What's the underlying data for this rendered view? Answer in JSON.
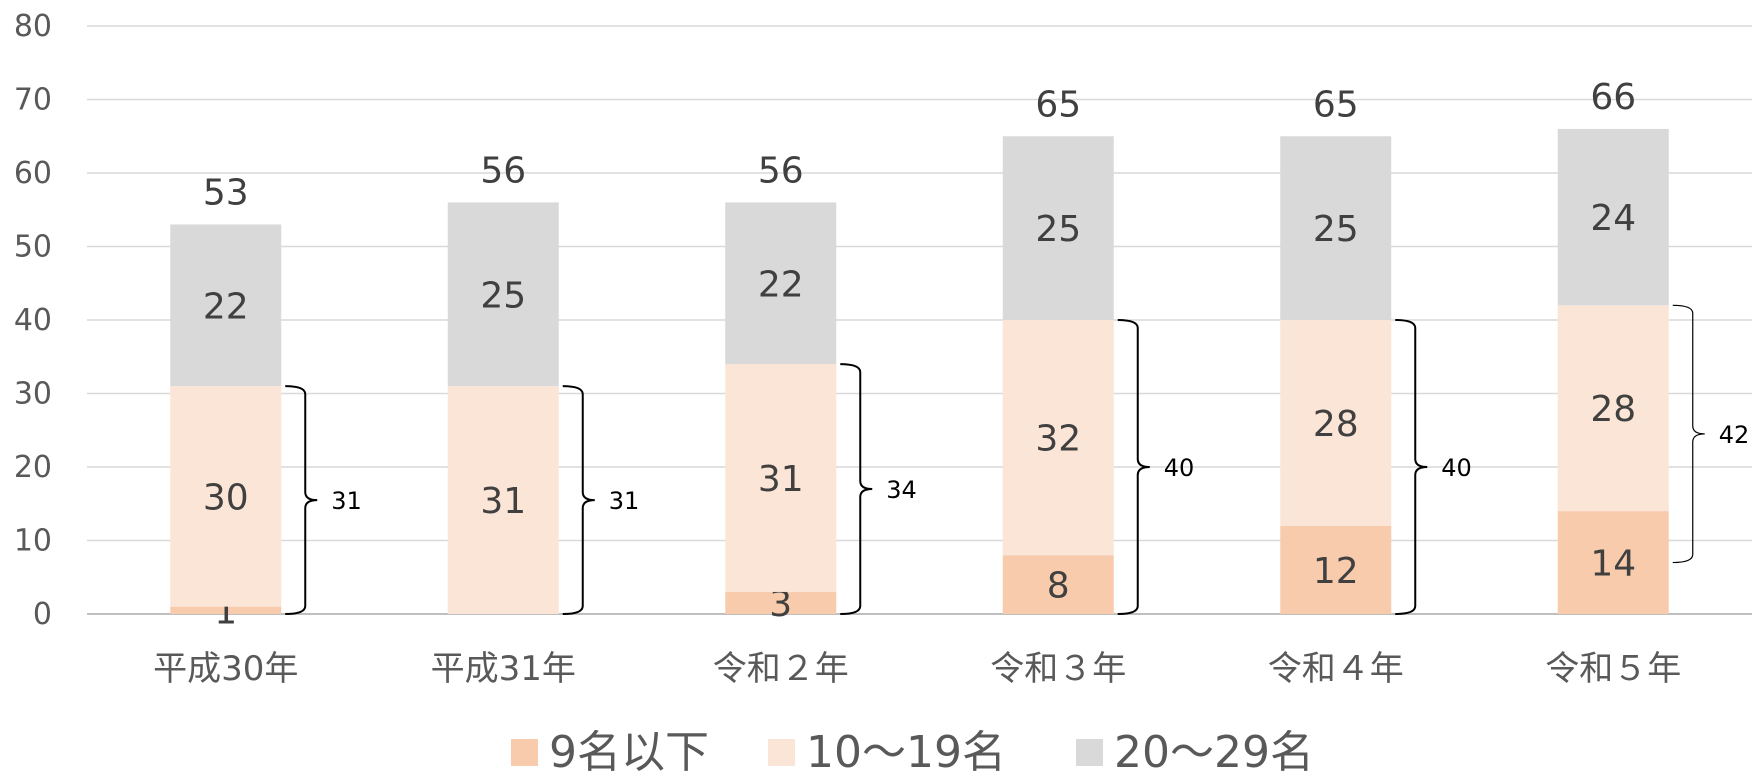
{
  "chart_data": {
    "type": "bar",
    "stacked": true,
    "title": "",
    "xlabel": "",
    "ylabel": "",
    "ylim": [
      0,
      80
    ],
    "yticks": [
      0,
      10,
      20,
      30,
      40,
      50,
      60,
      70,
      80
    ],
    "grid": true,
    "legend_position": "bottom",
    "categories": [
      "平成30年",
      "平成31年",
      "令和２年",
      "令和３年",
      "令和４年",
      "令和５年"
    ],
    "series": [
      {
        "name": "9名以下",
        "color": "#F8CBAD",
        "values": [
          1,
          0,
          3,
          8,
          12,
          14
        ],
        "labels": [
          "1",
          "",
          "3",
          "8",
          "12",
          "14"
        ]
      },
      {
        "name": "10〜19名",
        "color": "#FBE5D6",
        "values": [
          30,
          31,
          31,
          32,
          28,
          28
        ],
        "labels": [
          "30",
          "31",
          "31",
          "32",
          "28",
          "28"
        ]
      },
      {
        "name": "20〜29名",
        "color": "#D9D9D9",
        "values": [
          22,
          25,
          22,
          25,
          25,
          24
        ],
        "labels": [
          "22",
          "25",
          "22",
          "25",
          "25",
          "24"
        ]
      }
    ],
    "totals": [
      53,
      56,
      56,
      65,
      65,
      66
    ],
    "bracket_totals": [
      31,
      31,
      34,
      40,
      40,
      42
    ]
  }
}
